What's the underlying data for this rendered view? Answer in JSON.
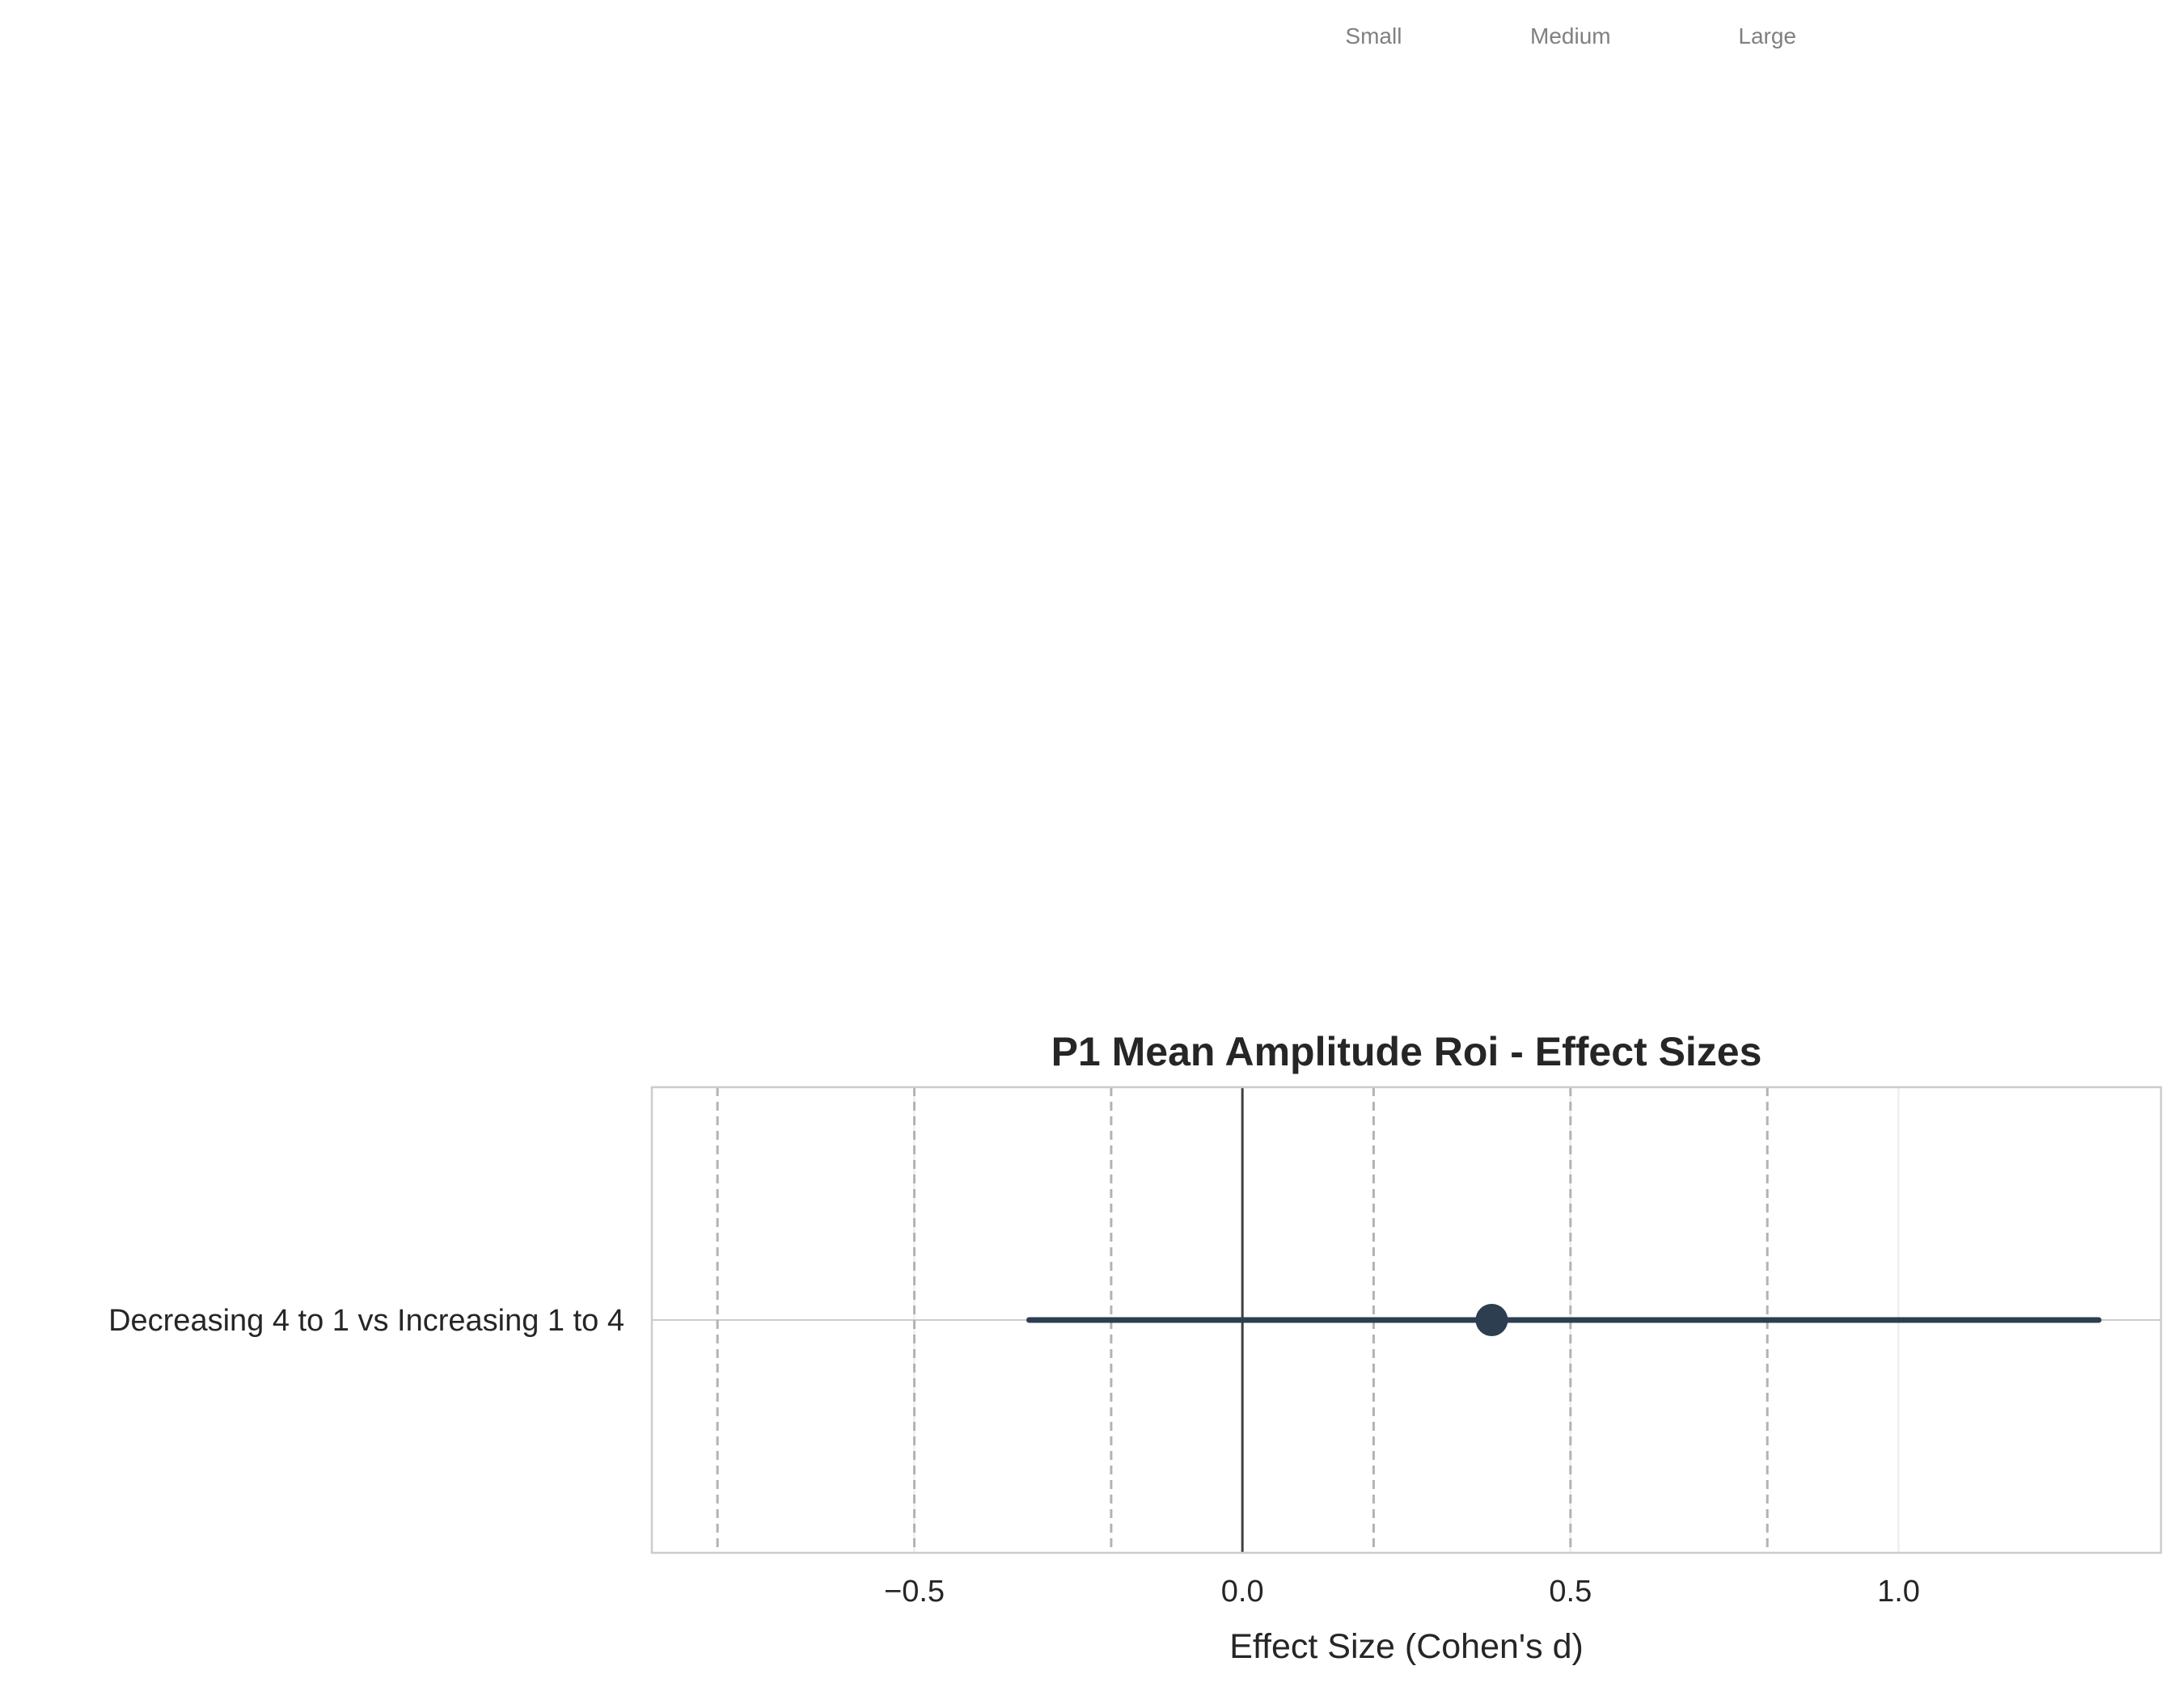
{
  "chart_data": {
    "type": "forest",
    "title": "P1 Mean Amplitude Roi - Effect Sizes",
    "xlabel": "Effect Size (Cohen's d)",
    "ylabel": "",
    "xlim": [
      -0.9,
      1.4
    ],
    "xticks": [
      -0.5,
      0.0,
      0.5,
      1.0
    ],
    "xtick_labels": [
      "−0.5",
      "0.0",
      "0.5",
      "1.0"
    ],
    "grid": true,
    "comparisons": [
      {
        "label": "Decreasing 4 to 1 vs Increasing 1 to 4",
        "estimate": 0.38,
        "ci_low": -0.325,
        "ci_high": 1.305
      }
    ],
    "reference_line": 0.0,
    "threshold_lines": [
      -0.8,
      -0.5,
      -0.2,
      0.2,
      0.5,
      0.8
    ],
    "threshold_labels": [
      {
        "text": "Small",
        "x": 0.2
      },
      {
        "text": "Medium",
        "x": 0.5
      },
      {
        "text": "Large",
        "x": 0.8
      }
    ],
    "colors": {
      "point": "#2c3e50",
      "ci_line": "#2c3e50",
      "threshold": "#b3b3b3",
      "reference": "#404040",
      "annotation": "#808080"
    }
  }
}
